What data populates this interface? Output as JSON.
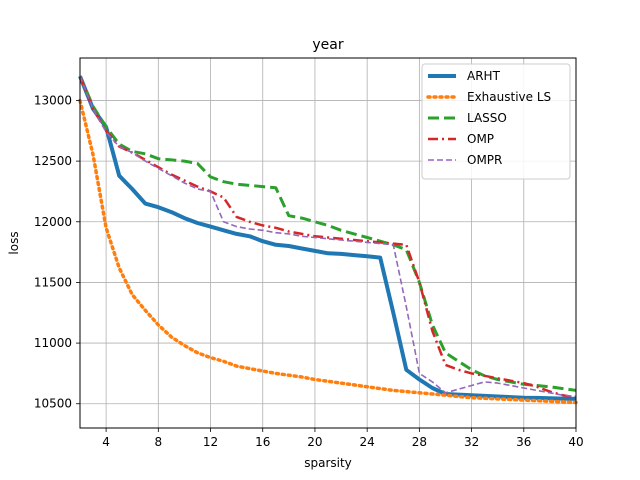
{
  "chart_data": {
    "type": "line",
    "title": "year",
    "xlabel": "sparsity",
    "ylabel": "loss",
    "xlim": [
      2,
      40
    ],
    "ylim": [
      10300,
      13350
    ],
    "xticks": [
      4,
      8,
      12,
      16,
      20,
      24,
      28,
      32,
      36,
      40
    ],
    "yticks": [
      10500,
      11000,
      11500,
      12000,
      12500,
      13000
    ],
    "grid": true,
    "legend_position": "top-right",
    "series": [
      {
        "name": "ARHT",
        "color": "#1f77b4",
        "style": "solid-thick",
        "x": [
          2,
          3,
          4,
          5,
          6,
          7,
          8,
          9,
          10,
          11,
          12,
          13,
          14,
          15,
          16,
          17,
          18,
          19,
          20,
          21,
          22,
          23,
          24,
          25,
          26,
          27,
          28,
          29,
          30,
          31,
          32,
          33,
          34,
          35,
          36,
          37,
          38,
          39,
          40
        ],
        "y": [
          13200,
          12930,
          12780,
          12380,
          12270,
          12150,
          12120,
          12080,
          12030,
          11990,
          11960,
          11930,
          11900,
          11880,
          11840,
          11810,
          11800,
          11780,
          11760,
          11740,
          11735,
          11725,
          11715,
          11705,
          11250,
          10780,
          10700,
          10630,
          10580,
          10575,
          10570,
          10565,
          10560,
          10555,
          10550,
          10548,
          10545,
          10542,
          10540
        ]
      },
      {
        "name": "Exhaustive LS",
        "color": "#ff7f0e",
        "style": "dotted",
        "x": [
          2,
          3,
          4,
          5,
          6,
          7,
          8,
          9,
          10,
          11,
          12,
          13,
          14,
          15,
          16,
          17,
          18,
          19,
          20,
          21,
          22,
          23,
          24,
          25,
          26,
          27,
          28,
          29,
          30,
          31,
          32,
          33,
          34,
          35,
          36,
          37,
          38,
          39,
          40
        ],
        "y": [
          13000,
          12550,
          11950,
          11620,
          11400,
          11270,
          11150,
          11050,
          10980,
          10920,
          10880,
          10850,
          10810,
          10790,
          10770,
          10750,
          10735,
          10720,
          10700,
          10685,
          10670,
          10655,
          10640,
          10625,
          10610,
          10600,
          10590,
          10580,
          10570,
          10560,
          10550,
          10545,
          10540,
          10535,
          10530,
          10525,
          10520,
          10515,
          10510
        ]
      },
      {
        "name": "LASSO",
        "color": "#2ca02c",
        "style": "dashed",
        "x": [
          2,
          3,
          4,
          5,
          6,
          7,
          8,
          9,
          10,
          11,
          12,
          13,
          14,
          15,
          16,
          17,
          18,
          19,
          20,
          21,
          22,
          23,
          24,
          25,
          26,
          27,
          28,
          29,
          30,
          31,
          32,
          33,
          34,
          35,
          36,
          37,
          38,
          39,
          40
        ],
        "y": [
          13200,
          12950,
          12780,
          12640,
          12580,
          12560,
          12520,
          12510,
          12500,
          12480,
          12370,
          12330,
          12310,
          12300,
          12290,
          12280,
          12050,
          12030,
          12000,
          11970,
          11930,
          11900,
          11870,
          11840,
          11810,
          11770,
          11500,
          11150,
          10920,
          10850,
          10780,
          10730,
          10700,
          10680,
          10660,
          10650,
          10640,
          10625,
          10610
        ]
      },
      {
        "name": "OMP",
        "color": "#d62728",
        "style": "dashdot",
        "x": [
          2,
          3,
          4,
          5,
          6,
          7,
          8,
          9,
          10,
          11,
          12,
          13,
          14,
          15,
          16,
          17,
          18,
          19,
          20,
          21,
          22,
          23,
          24,
          25,
          26,
          27,
          28,
          29,
          30,
          31,
          32,
          33,
          34,
          35,
          36,
          37,
          38,
          39,
          40
        ],
        "y": [
          13200,
          12930,
          12750,
          12620,
          12570,
          12510,
          12450,
          12390,
          12340,
          12290,
          12250,
          12200,
          12040,
          12000,
          11970,
          11950,
          11920,
          11900,
          11880,
          11870,
          11860,
          11850,
          11840,
          11830,
          11820,
          11810,
          11500,
          11100,
          10820,
          10780,
          10750,
          10730,
          10710,
          10690,
          10670,
          10640,
          10600,
          10570,
          10550
        ]
      },
      {
        "name": "OMPR",
        "color": "#9467bd",
        "style": "dashed-thin",
        "x": [
          2,
          3,
          4,
          5,
          6,
          7,
          8,
          9,
          10,
          11,
          12,
          13,
          14,
          15,
          16,
          17,
          18,
          19,
          20,
          21,
          22,
          23,
          24,
          25,
          26,
          27,
          28,
          29,
          30,
          31,
          32,
          33,
          34,
          35,
          36,
          37,
          38,
          39,
          40
        ],
        "y": [
          13200,
          12930,
          12740,
          12620,
          12570,
          12500,
          12440,
          12380,
          12320,
          12270,
          12250,
          12000,
          11960,
          11940,
          11930,
          11910,
          11900,
          11880,
          11870,
          11860,
          11850,
          11840,
          11830,
          11820,
          11810,
          11300,
          10750,
          10680,
          10590,
          10620,
          10650,
          10680,
          10670,
          10650,
          10630,
          10610,
          10590,
          10570,
          10560
        ]
      }
    ]
  }
}
